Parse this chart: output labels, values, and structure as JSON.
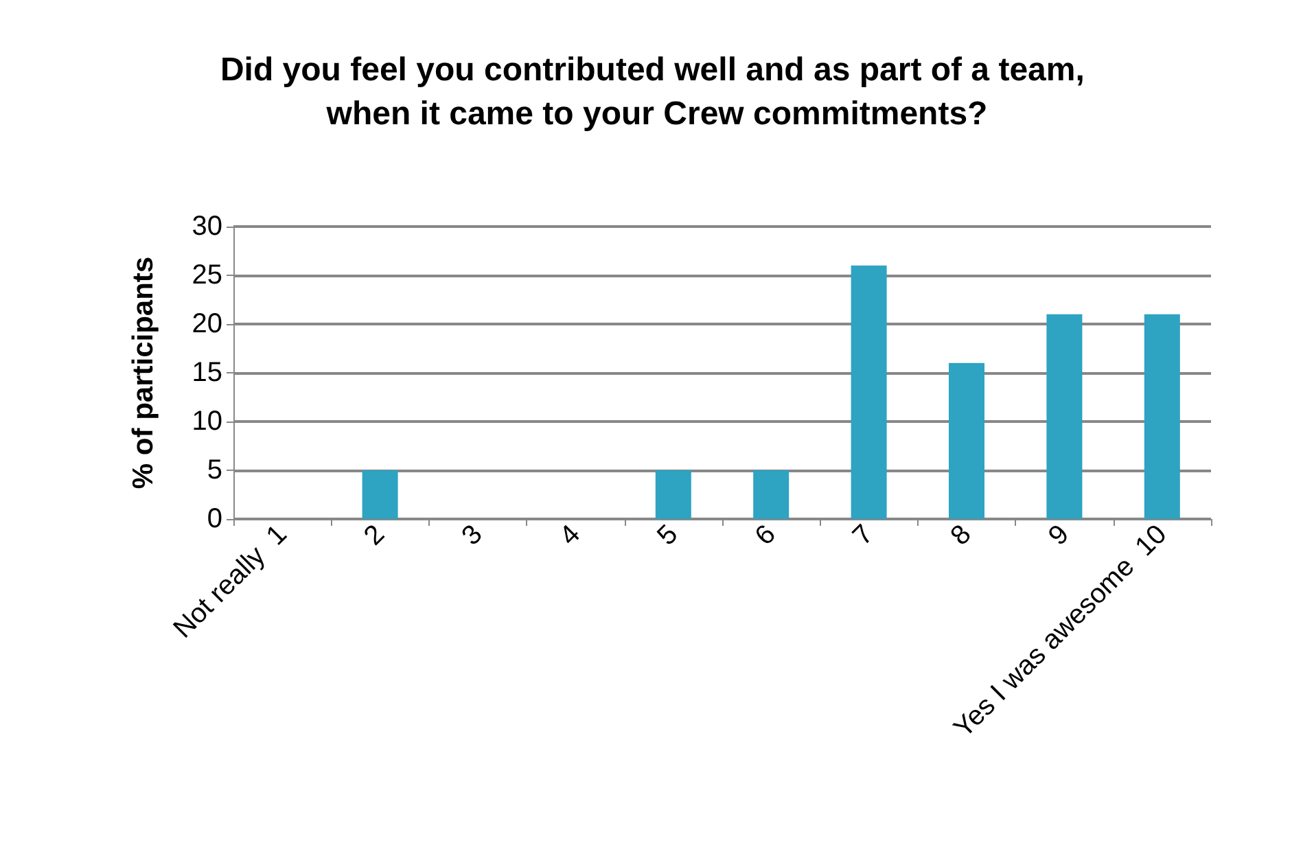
{
  "chart_data": {
    "type": "bar",
    "title": "Did you feel you contributed well and as part of a team, when it came to your Crew commitments?",
    "ylabel": "% of participants",
    "categories": [
      "Not really  1",
      "2",
      "3",
      "4",
      "5",
      "6",
      "7",
      "8",
      "9",
      "Yes I was awesome  10"
    ],
    "values": [
      0,
      5,
      0,
      0,
      5,
      5,
      26,
      16,
      21,
      21
    ],
    "color": "#2ea3c2",
    "ylim": [
      0,
      30
    ],
    "yticks": [
      0,
      5,
      10,
      15,
      20,
      25,
      30
    ],
    "grid": "y"
  }
}
